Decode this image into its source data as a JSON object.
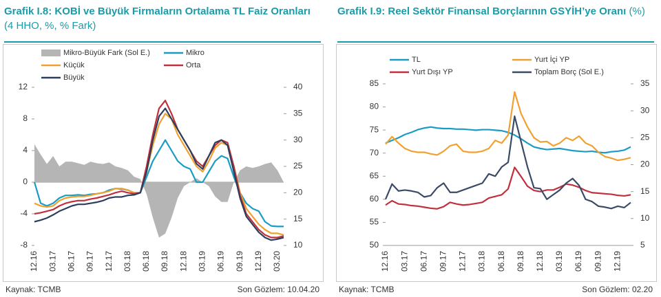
{
  "chart_data": [
    {
      "type": "line",
      "title": "Grafik I.8: KOBİ ve Büyük Firmaların Ortalama TL Faiz Oranları",
      "subtitle": "(4 HHO, %, % Fark)",
      "source": "Kaynak: TCMB",
      "note": "Son Gözlem: 10.04.20",
      "legend": "top",
      "categories": [
        "12.16",
        null,
        null,
        "03.17",
        null,
        null,
        "06.17",
        null,
        null,
        "09.17",
        null,
        null,
        "12.17",
        null,
        null,
        "03.18",
        null,
        null,
        "06.18",
        null,
        null,
        "09.18",
        null,
        null,
        "12.18",
        null,
        null,
        "03.19",
        null,
        null,
        "06.19",
        null,
        null,
        "09.19",
        null,
        null,
        "12.19",
        null,
        null,
        "03.20",
        null
      ],
      "ylim": [
        -8,
        12
      ],
      "yticks": [
        -8,
        -4,
        0,
        4,
        8,
        12
      ],
      "y2lim": [
        10,
        40
      ],
      "y2ticks": [
        10,
        15,
        20,
        25,
        30,
        35,
        40
      ],
      "series": [
        {
          "name": "Mikro-Büyük Fark (Sol E.)",
          "type": "area",
          "axis": "y",
          "color": "#b5b5b5",
          "values": [
            4.8,
            3.5,
            2.3,
            3.3,
            2,
            2.6,
            2.6,
            2.4,
            2.2,
            2.6,
            2.4,
            2.3,
            2.5,
            2,
            1.8,
            1.5,
            0.7,
            0.4,
            -1.5,
            -4.5,
            -7,
            -6.5,
            -4.5,
            -2,
            -0.5,
            0,
            0.5,
            0,
            -0.5,
            -1.8,
            -2.5,
            -2.5,
            0,
            1.5,
            2,
            1.8,
            2,
            2.3,
            2.5,
            1.5,
            0
          ]
        },
        {
          "name": "Mikro",
          "axis": "y2",
          "color": "#1a9bc4",
          "values": [
            22,
            18,
            17.5,
            18,
            19,
            19.5,
            19.5,
            19.6,
            19.5,
            19.7,
            19.8,
            20,
            20.5,
            20.8,
            20.7,
            20.5,
            20,
            20,
            23,
            26,
            28,
            30,
            28,
            26,
            25,
            24.5,
            22,
            22,
            24,
            26,
            27,
            26.5,
            23,
            20,
            18,
            17,
            16.5,
            14.5,
            13.7,
            13.6,
            13.6
          ]
        },
        {
          "name": "Küçük",
          "axis": "y2",
          "color": "#f0a030",
          "values": [
            18,
            17.5,
            17.3,
            17.5,
            18.5,
            19,
            19.2,
            19.3,
            19.3,
            19.5,
            19.8,
            20,
            20.3,
            20.8,
            20.8,
            20.5,
            20,
            20,
            24,
            29,
            33,
            35,
            34,
            31,
            29,
            27,
            25,
            24,
            26,
            28.5,
            29.5,
            29,
            25,
            20,
            17,
            15.5,
            14,
            13,
            12.3,
            12.3,
            12
          ]
        },
        {
          "name": "Orta",
          "axis": "y2",
          "color": "#c0303c",
          "values": [
            16,
            16.2,
            16.5,
            16.8,
            17.5,
            18,
            18.3,
            18.5,
            18.5,
            18.8,
            19,
            19.3,
            19.6,
            20,
            20.3,
            20,
            19.8,
            20,
            25,
            31,
            36,
            37.5,
            35,
            32,
            30,
            28,
            26,
            25,
            27,
            29,
            30,
            29.5,
            25,
            19.5,
            16,
            14.5,
            13,
            12,
            11.5,
            11.5,
            11.8
          ]
        },
        {
          "name": "Büyük",
          "axis": "y2",
          "color": "#2c3e5c",
          "values": [
            14.5,
            14.8,
            15.2,
            15.8,
            16.5,
            17,
            17.5,
            17.8,
            17.8,
            18,
            18.2,
            18.5,
            19,
            19.2,
            19.2,
            19.5,
            19.6,
            20,
            24,
            30,
            34.5,
            36,
            34,
            32,
            30,
            28,
            25.5,
            24.5,
            27,
            29.5,
            30,
            29,
            24,
            19,
            15.5,
            14,
            12.5,
            11.5,
            11,
            11.2,
            11.5
          ]
        }
      ]
    },
    {
      "type": "line",
      "title": "Grafik I.9: Reel Sektör Finansal Borçlarının GSYİH’ye Oranı",
      "subtitle": "(%)",
      "source": "Kaynak: TCMB",
      "note": "Son Gözlem: 02.20",
      "legend": "top",
      "categories": [
        "12.16",
        null,
        null,
        "03.17",
        null,
        null,
        "06.17",
        null,
        null,
        "09.17",
        null,
        null,
        "12.17",
        null,
        null,
        "03.18",
        null,
        null,
        "06.18",
        null,
        null,
        "09.18",
        null,
        null,
        "12.18",
        null,
        null,
        "03.19",
        null,
        null,
        "06.19",
        null,
        null,
        "09.19",
        null,
        null,
        "12.19",
        null,
        null
      ],
      "ylim": [
        50,
        85
      ],
      "yticks": [
        50,
        55,
        60,
        65,
        70,
        75,
        80,
        85
      ],
      "y2lim": [
        5,
        35
      ],
      "y2ticks": [
        5,
        10,
        15,
        20,
        25,
        30,
        35
      ],
      "series": [
        {
          "name": "TL",
          "axis": "y2",
          "color": "#1a9bc4",
          "values": [
            24,
            24.5,
            25,
            25.6,
            26,
            26.5,
            26.8,
            27,
            26.8,
            26.7,
            26.7,
            26.6,
            26.6,
            26.5,
            26.4,
            26.5,
            26.5,
            26.4,
            26.3,
            26,
            25.5,
            24.8,
            24,
            23.3,
            23,
            22.8,
            22.9,
            23,
            22.8,
            22.6,
            22.5,
            22.4,
            22.5,
            22.3,
            22.2,
            22.4,
            22.5,
            22.7,
            23.3
          ]
        },
        {
          "name": "Yurt İçi YP",
          "axis": "y2",
          "color": "#f0a030",
          "values": [
            23.8,
            25.2,
            24,
            23,
            22.5,
            22.3,
            22.3,
            22,
            21.8,
            22.5,
            23.5,
            23.8,
            22.5,
            22.3,
            22.3,
            22.5,
            23,
            24.5,
            24,
            25.5,
            33.5,
            29.5,
            27,
            25,
            24.2,
            24.3,
            23.5,
            24,
            25,
            24.5,
            25.3,
            24,
            23.5,
            22.3,
            21.5,
            21.2,
            20.8,
            21,
            21.3
          ]
        },
        {
          "name": "Yurt Dışı YP",
          "axis": "y2",
          "color": "#c0303c",
          "values": [
            12.5,
            13.3,
            12.7,
            12.6,
            12.4,
            12.3,
            12.1,
            11.9,
            11.8,
            12.2,
            13,
            12.7,
            12.5,
            12.6,
            12.8,
            13,
            13.8,
            14.1,
            14.4,
            15.5,
            19.5,
            17.8,
            16,
            15.2,
            15,
            15.3,
            15.3,
            15.8,
            16.4,
            16.2,
            15.8,
            15.2,
            14.8,
            14.7,
            14.6,
            14.5,
            14.3,
            14.2,
            14.4
          ]
        },
        {
          "name": "Toplam Borç (Sol E.)",
          "axis": "y",
          "color": "#3a4a66",
          "values": [
            60,
            63.3,
            61.8,
            62,
            61.8,
            61.5,
            60.5,
            60.8,
            62.5,
            63.5,
            61.5,
            61.5,
            62,
            62.5,
            63,
            63.5,
            65.5,
            65,
            67,
            68,
            78,
            72.5,
            67,
            62.5,
            62.3,
            60,
            61,
            62,
            63.5,
            64.5,
            63,
            60,
            59.5,
            58.5,
            58.3,
            58,
            58.5,
            58.2,
            59.3
          ]
        }
      ]
    }
  ]
}
